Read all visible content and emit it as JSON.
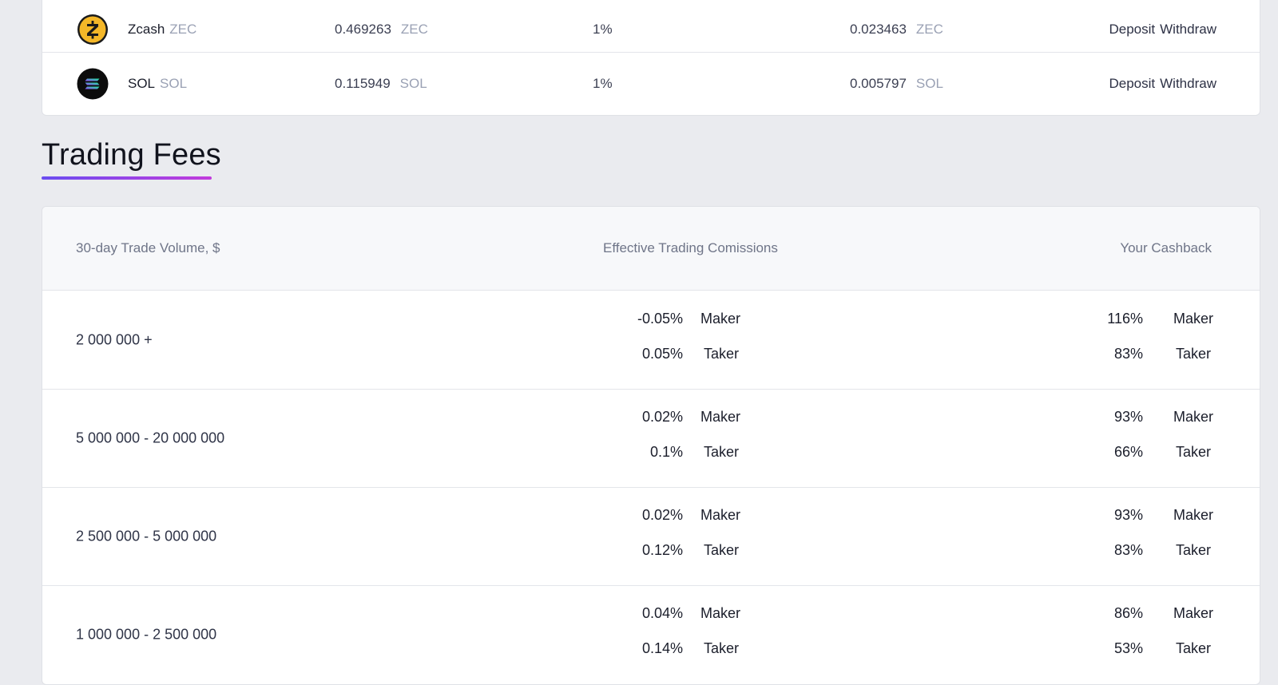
{
  "coins": [
    {
      "name": "Zcash",
      "ticker": "ZEC",
      "balance": "0.469263",
      "balance_unit": "ZEC",
      "fee": "1%",
      "min": "0.023463",
      "min_unit": "ZEC",
      "deposit": "Deposit",
      "withdraw": "Withdraw",
      "icon": "zcash-icon",
      "color": "#f4b728"
    },
    {
      "name": "SOL",
      "ticker": "SOL",
      "balance": "0.115949",
      "balance_unit": "SOL",
      "fee": "1%",
      "min": "0.005797",
      "min_unit": "SOL",
      "deposit": "Deposit",
      "withdraw": "Withdraw",
      "icon": "solana-icon",
      "color": "#0c0c0c"
    }
  ],
  "section_title": "Trading Fees",
  "fees_table": {
    "headers": {
      "volume": "30-day Trade Volume, $",
      "commissions": "Effective Trading Comissions",
      "cashback": "Your Cashback"
    },
    "rows": [
      {
        "volume": "2 000 000 +",
        "maker_fee": "-0.05%",
        "maker_label": "Maker",
        "taker_fee": "0.05%",
        "taker_label": "Taker",
        "maker_cashback": "116%",
        "maker_cb_label": "Maker",
        "taker_cashback": "83%",
        "taker_cb_label": "Taker"
      },
      {
        "volume": "5 000 000 - 20 000 000",
        "maker_fee": "0.02%",
        "maker_label": "Maker",
        "taker_fee": "0.1%",
        "taker_label": "Taker",
        "maker_cashback": "93%",
        "maker_cb_label": "Maker",
        "taker_cashback": "66%",
        "taker_cb_label": "Taker"
      },
      {
        "volume": "2 500 000 - 5 000 000",
        "maker_fee": "0.02%",
        "maker_label": "Maker",
        "taker_fee": "0.12%",
        "taker_label": "Taker",
        "maker_cashback": "93%",
        "maker_cb_label": "Maker",
        "taker_cashback": "83%",
        "taker_cb_label": "Taker"
      },
      {
        "volume": "1 000 000 - 2 500 000",
        "maker_fee": "0.04%",
        "maker_label": "Maker",
        "taker_fee": "0.14%",
        "taker_label": "Taker",
        "maker_cashback": "86%",
        "maker_cb_label": "Maker",
        "taker_cashback": "53%",
        "taker_cb_label": "Taker"
      }
    ]
  },
  "colors": {
    "accent_start": "#6a4cf0",
    "accent_end": "#c23bdc",
    "background": "#eaebef"
  }
}
